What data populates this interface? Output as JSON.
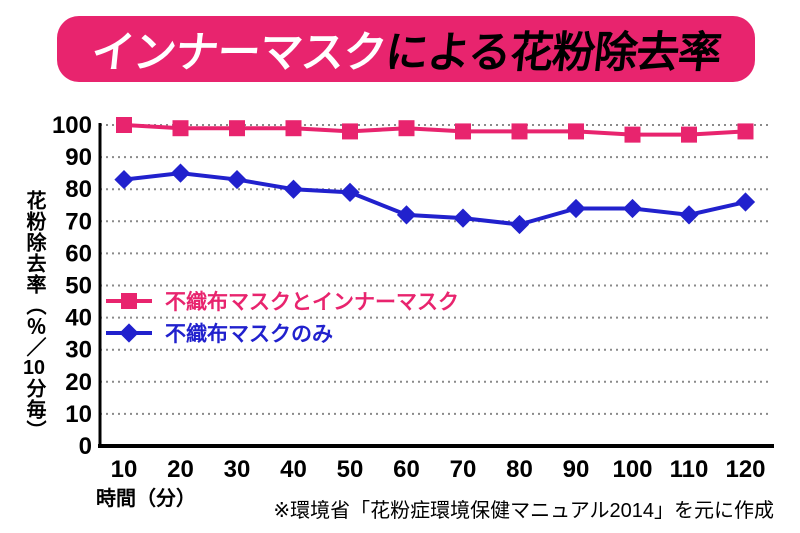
{
  "title": {
    "highlight": "インナーマスク",
    "rest": "による花粉除去率"
  },
  "footnote": "※環境省「花粉症環境保健マニュアル2014」を元に作成",
  "colors": {
    "banner_pink": "#e8246e",
    "series_pink": "#e8246e",
    "series_blue": "#2121cd",
    "grid_gray": "#8a8a8a",
    "axis_black": "#000000"
  },
  "chart_data": {
    "type": "line",
    "title": "インナーマスクによる花粉除去率",
    "xlabel": "時間（分）",
    "ylabel": "花粉除去率（％／10分毎）",
    "ylabel_parts": [
      "花粉除去率（％／",
      "10",
      "分毎）"
    ],
    "x": [
      10,
      20,
      30,
      40,
      50,
      60,
      70,
      80,
      90,
      100,
      110,
      120
    ],
    "y_ticks": [
      0,
      10,
      20,
      30,
      40,
      50,
      60,
      70,
      80,
      90,
      100
    ],
    "ylim": [
      0,
      100
    ],
    "grid": "dotted horizontal",
    "legend_position": "inside upper-left of lower half",
    "series": [
      {
        "name": "不織布マスクとインナーマスク",
        "color": "#e8246e",
        "marker": "square",
        "values": [
          100,
          99,
          99,
          99,
          98,
          99,
          98,
          98,
          98,
          97,
          97,
          98
        ]
      },
      {
        "name": "不織布マスクのみ",
        "color": "#2121cd",
        "marker": "diamond",
        "values": [
          83,
          85,
          83,
          80,
          79,
          72,
          71,
          69,
          74,
          74,
          72,
          76
        ]
      }
    ]
  }
}
